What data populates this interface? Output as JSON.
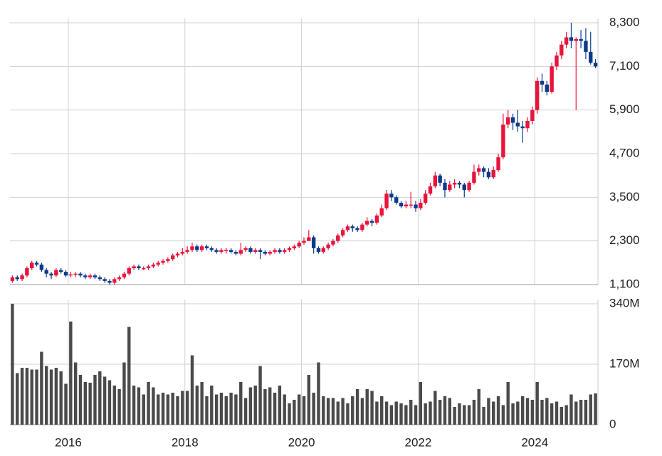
{
  "chart_data": [
    {
      "type": "candlestick",
      "open": [
        1200,
        1300,
        1250,
        1350,
        1550,
        1700,
        1650,
        1500,
        1400,
        1350,
        1500,
        1450,
        1350,
        1380,
        1400,
        1350,
        1300,
        1350,
        1300,
        1250,
        1200,
        1150,
        1250,
        1300,
        1400,
        1550,
        1600,
        1550,
        1550,
        1600,
        1650,
        1700,
        1750,
        1800,
        1900,
        1950,
        2000,
        2050,
        2150,
        2050,
        2150,
        2100,
        2050,
        2000,
        2050,
        2050,
        2000,
        1950,
        2050,
        2100,
        2000,
        2050,
        2000,
        1950,
        2000,
        2050,
        2000,
        2050,
        2100,
        2150,
        2250,
        2300,
        2400,
        2100,
        2000,
        2100,
        2200,
        2300,
        2450,
        2600,
        2700,
        2650,
        2600,
        2750,
        2850,
        2800,
        3000,
        3200,
        3600,
        3500,
        3350,
        3250,
        3300,
        3300,
        3200,
        3350,
        3600,
        3800,
        4100,
        3900,
        3700,
        3850,
        3900,
        3850,
        3700,
        3900,
        4200,
        4300,
        4200,
        4050,
        4250,
        4600,
        5500,
        5700,
        5550,
        5450,
        5400,
        5600,
        5900,
        6700,
        6600,
        6400,
        7100,
        7400,
        7700,
        7900,
        7800,
        7850,
        7800,
        7500,
        7200
      ],
      "high": [
        1350,
        1350,
        1400,
        1600,
        1750,
        1750,
        1700,
        1550,
        1450,
        1550,
        1550,
        1500,
        1450,
        1450,
        1450,
        1400,
        1400,
        1400,
        1350,
        1300,
        1250,
        1300,
        1350,
        1450,
        1600,
        1650,
        1650,
        1600,
        1650,
        1700,
        1750,
        1800,
        1850,
        1950,
        2000,
        2100,
        2150,
        2250,
        2200,
        2200,
        2200,
        2150,
        2100,
        2100,
        2100,
        2100,
        2050,
        2250,
        2150,
        2150,
        2100,
        2100,
        2050,
        2050,
        2100,
        2100,
        2100,
        2150,
        2200,
        2300,
        2400,
        2600,
        2450,
        2150,
        2150,
        2250,
        2350,
        2500,
        2650,
        2750,
        2750,
        2700,
        2800,
        2950,
        2900,
        3050,
        3300,
        3700,
        3700,
        3550,
        3400,
        3400,
        3650,
        3400,
        3450,
        3700,
        3900,
        4200,
        4150,
        4000,
        3950,
        4000,
        3950,
        3900,
        3950,
        4400,
        4400,
        4350,
        4300,
        4350,
        4700,
        5800,
        5900,
        5800,
        5900,
        5600,
        5700,
        6000,
        6800,
        6900,
        6700,
        7200,
        7500,
        7800,
        8050,
        8300,
        7900,
        8100,
        8150,
        8050,
        7300
      ],
      "low": [
        1150,
        1200,
        1200,
        1300,
        1500,
        1600,
        1450,
        1300,
        1250,
        1300,
        1400,
        1300,
        1300,
        1300,
        1300,
        1250,
        1250,
        1250,
        1200,
        1150,
        1100,
        1100,
        1200,
        1250,
        1350,
        1500,
        1500,
        1500,
        1500,
        1550,
        1600,
        1650,
        1700,
        1750,
        1850,
        1900,
        1950,
        2000,
        2000,
        2000,
        2050,
        2000,
        1950,
        1950,
        1950,
        1950,
        1900,
        1900,
        2000,
        1950,
        1950,
        1800,
        1900,
        1900,
        1950,
        1950,
        1950,
        2000,
        2050,
        2100,
        2200,
        2300,
        1950,
        1950,
        1950,
        2050,
        2150,
        2250,
        2400,
        2550,
        2550,
        2550,
        2550,
        2700,
        2700,
        2750,
        2950,
        3150,
        3400,
        3300,
        3200,
        3200,
        3200,
        3100,
        3150,
        3300,
        3550,
        3750,
        3800,
        3500,
        3650,
        3750,
        3750,
        3500,
        3650,
        3850,
        4100,
        4050,
        4000,
        4000,
        4200,
        4550,
        5400,
        5350,
        5300,
        5000,
        5300,
        5500,
        5800,
        6400,
        6300,
        6350,
        7000,
        7300,
        7600,
        7600,
        5900,
        7600,
        7300,
        7150,
        7050
      ],
      "close": [
        1300,
        1250,
        1350,
        1550,
        1700,
        1650,
        1500,
        1400,
        1350,
        1500,
        1450,
        1350,
        1380,
        1400,
        1350,
        1300,
        1350,
        1300,
        1250,
        1200,
        1150,
        1250,
        1300,
        1400,
        1550,
        1600,
        1550,
        1550,
        1600,
        1650,
        1700,
        1750,
        1800,
        1900,
        1950,
        2000,
        2050,
        2150,
        2050,
        2150,
        2100,
        2050,
        2000,
        2050,
        2050,
        2000,
        1950,
        2050,
        2100,
        2000,
        2050,
        2000,
        1950,
        2000,
        2050,
        2000,
        2050,
        2100,
        2150,
        2250,
        2300,
        2400,
        2100,
        2000,
        2100,
        2200,
        2300,
        2450,
        2600,
        2700,
        2650,
        2600,
        2750,
        2850,
        2800,
        3000,
        3200,
        3600,
        3500,
        3350,
        3250,
        3300,
        3300,
        3200,
        3350,
        3600,
        3800,
        4100,
        3900,
        3700,
        3850,
        3900,
        3850,
        3700,
        3900,
        4200,
        4300,
        4200,
        4050,
        4250,
        4600,
        5500,
        5700,
        5550,
        5450,
        5400,
        5600,
        5900,
        6700,
        6600,
        6400,
        7100,
        7400,
        7700,
        7900,
        7800,
        7850,
        7800,
        7500,
        7200,
        7100
      ],
      "up_color": "#e8143c",
      "down_color": "#0a3a8c",
      "ylim": [
        1100,
        8300
      ],
      "yticks": [
        {
          "value": 1100,
          "label": "1,100"
        },
        {
          "value": 2300,
          "label": "2,300"
        },
        {
          "value": 3500,
          "label": "3,500"
        },
        {
          "value": 4700,
          "label": "4,700"
        },
        {
          "value": 5900,
          "label": "5,900"
        },
        {
          "value": 7100,
          "label": "7,100"
        },
        {
          "value": 8300,
          "label": "8,300"
        }
      ],
      "grid": true
    },
    {
      "type": "bar",
      "categories": [
        null,
        null,
        null,
        null,
        null,
        null,
        null,
        null,
        null,
        null,
        null,
        null,
        "2016",
        null,
        null,
        null,
        null,
        null,
        null,
        null,
        null,
        null,
        null,
        null,
        null,
        null,
        null,
        null,
        null,
        null,
        null,
        null,
        null,
        null,
        null,
        null,
        "2018",
        null,
        null,
        null,
        null,
        null,
        null,
        null,
        null,
        null,
        null,
        null,
        null,
        null,
        null,
        null,
        null,
        null,
        null,
        null,
        null,
        null,
        null,
        null,
        "2020",
        null,
        null,
        null,
        null,
        null,
        null,
        null,
        null,
        null,
        null,
        null,
        null,
        null,
        null,
        null,
        null,
        null,
        null,
        null,
        null,
        null,
        null,
        null,
        "2022",
        null,
        null,
        null,
        null,
        null,
        null,
        null,
        null,
        null,
        null,
        null,
        null,
        null,
        null,
        null,
        null,
        null,
        null,
        null,
        null,
        null,
        null,
        null,
        "2024",
        null,
        null,
        null,
        null,
        null,
        null,
        null,
        null,
        null,
        null,
        null,
        null
      ],
      "values": [
        340,
        145,
        160,
        160,
        155,
        155,
        205,
        165,
        155,
        160,
        150,
        115,
        290,
        175,
        140,
        120,
        118,
        140,
        150,
        135,
        125,
        110,
        100,
        175,
        275,
        110,
        105,
        85,
        120,
        105,
        85,
        90,
        85,
        90,
        80,
        95,
        95,
        195,
        110,
        120,
        80,
        110,
        85,
        90,
        80,
        90,
        85,
        120,
        75,
        105,
        110,
        165,
        100,
        105,
        90,
        110,
        85,
        60,
        70,
        85,
        80,
        140,
        90,
        175,
        80,
        75,
        75,
        65,
        75,
        60,
        80,
        100,
        75,
        100,
        95,
        65,
        80,
        65,
        55,
        65,
        60,
        55,
        70,
        55,
        120,
        60,
        65,
        95,
        70,
        80,
        75,
        50,
        60,
        55,
        55,
        70,
        100,
        50,
        75,
        65,
        80,
        55,
        120,
        60,
        65,
        80,
        75,
        70,
        120,
        70,
        75,
        60,
        65,
        50,
        55,
        85,
        65,
        70,
        70,
        85,
        88
      ],
      "color": "#4a4a4a",
      "ylim": [
        0,
        340
      ],
      "yticks": [
        0,
        {
          "value": 170,
          "label": "170M"
        },
        {
          "value": 340,
          "label": "340M"
        }
      ],
      "grid": true
    }
  ]
}
